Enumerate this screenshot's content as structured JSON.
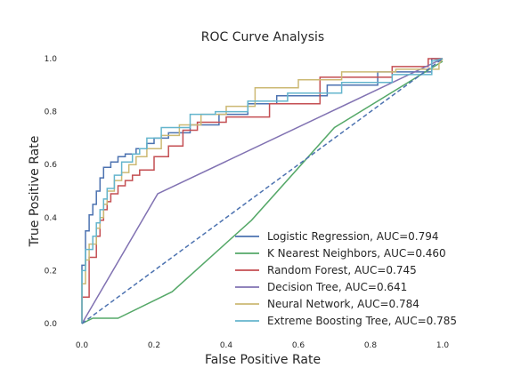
{
  "chart_data": {
    "type": "line",
    "title": "ROC Curve Analysis",
    "xlabel": "False Positive Rate",
    "ylabel": "True Positive Rate",
    "xlim": [
      0.0,
      1.0
    ],
    "ylim": [
      0.0,
      1.0
    ],
    "xticks": [
      "0.0",
      "0.2",
      "0.4",
      "0.6",
      "0.8",
      "1.0"
    ],
    "yticks": [
      "0.0",
      "0.2",
      "0.4",
      "0.6",
      "0.8",
      "1.0"
    ],
    "grid": false,
    "legend_position": "lower-right",
    "series": [
      {
        "name": "Logistic Regression, AUC=0.794",
        "color": "#4c72b0",
        "step": true,
        "x": [
          0.0,
          0.0,
          0.01,
          0.01,
          0.02,
          0.02,
          0.03,
          0.03,
          0.04,
          0.04,
          0.05,
          0.05,
          0.06,
          0.06,
          0.08,
          0.08,
          0.1,
          0.1,
          0.12,
          0.12,
          0.15,
          0.15,
          0.18,
          0.18,
          0.2,
          0.2,
          0.24,
          0.24,
          0.3,
          0.3,
          0.38,
          0.38,
          0.46,
          0.46,
          0.54,
          0.54,
          0.68,
          0.68,
          0.82,
          0.82,
          0.97,
          0.97,
          1.0
        ],
        "y": [
          0.0,
          0.22,
          0.22,
          0.35,
          0.35,
          0.41,
          0.41,
          0.45,
          0.45,
          0.5,
          0.5,
          0.55,
          0.55,
          0.59,
          0.59,
          0.61,
          0.61,
          0.63,
          0.63,
          0.64,
          0.64,
          0.66,
          0.66,
          0.68,
          0.68,
          0.7,
          0.7,
          0.72,
          0.72,
          0.75,
          0.75,
          0.79,
          0.79,
          0.83,
          0.83,
          0.86,
          0.86,
          0.9,
          0.9,
          0.95,
          0.95,
          1.0,
          1.0
        ]
      },
      {
        "name": "K Nearest Neighbors, AUC=0.460",
        "color": "#55a868",
        "step": false,
        "x": [
          0.0,
          0.03,
          0.1,
          0.25,
          0.47,
          0.7,
          1.0
        ],
        "y": [
          0.0,
          0.02,
          0.02,
          0.12,
          0.39,
          0.74,
          0.99
        ]
      },
      {
        "name": "Random Forest, AUC=0.745",
        "color": "#c44e52",
        "step": true,
        "x": [
          0.0,
          0.0,
          0.02,
          0.02,
          0.04,
          0.04,
          0.05,
          0.05,
          0.06,
          0.06,
          0.07,
          0.07,
          0.08,
          0.08,
          0.1,
          0.1,
          0.12,
          0.12,
          0.14,
          0.14,
          0.16,
          0.16,
          0.2,
          0.2,
          0.24,
          0.24,
          0.28,
          0.28,
          0.32,
          0.32,
          0.4,
          0.4,
          0.52,
          0.52,
          0.66,
          0.66,
          0.86,
          0.86,
          0.96,
          0.96,
          1.0
        ],
        "y": [
          0.0,
          0.1,
          0.1,
          0.25,
          0.25,
          0.33,
          0.33,
          0.39,
          0.39,
          0.43,
          0.43,
          0.46,
          0.46,
          0.49,
          0.49,
          0.52,
          0.52,
          0.54,
          0.54,
          0.56,
          0.56,
          0.58,
          0.58,
          0.63,
          0.63,
          0.67,
          0.67,
          0.73,
          0.73,
          0.76,
          0.76,
          0.78,
          0.78,
          0.83,
          0.83,
          0.93,
          0.93,
          0.97,
          0.97,
          1.0,
          1.0
        ]
      },
      {
        "name": "Decision Tree, AUC=0.641",
        "color": "#8172b2",
        "step": false,
        "x": [
          0.0,
          0.21,
          1.0
        ],
        "y": [
          0.0,
          0.49,
          1.0
        ]
      },
      {
        "name": "Neural Network, AUC=0.784",
        "color": "#ccb974",
        "step": true,
        "x": [
          0.0,
          0.0,
          0.01,
          0.01,
          0.02,
          0.02,
          0.04,
          0.04,
          0.05,
          0.05,
          0.06,
          0.06,
          0.07,
          0.07,
          0.09,
          0.09,
          0.11,
          0.11,
          0.13,
          0.13,
          0.15,
          0.15,
          0.18,
          0.18,
          0.22,
          0.22,
          0.27,
          0.27,
          0.33,
          0.33,
          0.4,
          0.4,
          0.48,
          0.48,
          0.6,
          0.6,
          0.72,
          0.72,
          0.87,
          0.87,
          0.99,
          0.99,
          1.0
        ],
        "y": [
          0.0,
          0.15,
          0.15,
          0.24,
          0.24,
          0.3,
          0.3,
          0.36,
          0.36,
          0.4,
          0.4,
          0.45,
          0.45,
          0.5,
          0.5,
          0.54,
          0.54,
          0.57,
          0.57,
          0.6,
          0.6,
          0.63,
          0.63,
          0.66,
          0.66,
          0.71,
          0.71,
          0.75,
          0.75,
          0.79,
          0.79,
          0.82,
          0.82,
          0.89,
          0.89,
          0.92,
          0.92,
          0.95,
          0.95,
          0.96,
          0.96,
          0.98,
          1.0
        ]
      },
      {
        "name": "Extreme Boosting Tree, AUC=0.785",
        "color": "#64b5cd",
        "step": true,
        "x": [
          0.0,
          0.0,
          0.01,
          0.01,
          0.03,
          0.03,
          0.04,
          0.04,
          0.05,
          0.05,
          0.06,
          0.06,
          0.07,
          0.07,
          0.09,
          0.09,
          0.11,
          0.11,
          0.14,
          0.14,
          0.16,
          0.16,
          0.18,
          0.18,
          0.22,
          0.22,
          0.3,
          0.3,
          0.37,
          0.37,
          0.46,
          0.46,
          0.57,
          0.57,
          0.72,
          0.72,
          0.86,
          0.86,
          0.97,
          0.97,
          1.0
        ],
        "y": [
          0.0,
          0.2,
          0.2,
          0.28,
          0.28,
          0.33,
          0.33,
          0.38,
          0.38,
          0.43,
          0.43,
          0.47,
          0.47,
          0.51,
          0.51,
          0.56,
          0.56,
          0.61,
          0.61,
          0.64,
          0.64,
          0.66,
          0.66,
          0.7,
          0.7,
          0.74,
          0.74,
          0.79,
          0.79,
          0.8,
          0.8,
          0.84,
          0.84,
          0.87,
          0.87,
          0.91,
          0.91,
          0.94,
          0.94,
          0.99,
          1.0
        ]
      },
      {
        "name": "",
        "color": "#4c72b0",
        "dashed": true,
        "step": false,
        "x": [
          0.0,
          1.0
        ],
        "y": [
          0.0,
          1.0
        ]
      }
    ]
  }
}
